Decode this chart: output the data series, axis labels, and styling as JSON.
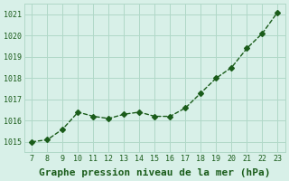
{
  "x": [
    7,
    8,
    9,
    10,
    11,
    12,
    13,
    14,
    15,
    16,
    17,
    18,
    19,
    20,
    21,
    22,
    23
  ],
  "y": [
    1015.0,
    1015.1,
    1015.6,
    1016.4,
    1016.2,
    1016.1,
    1016.3,
    1016.4,
    1016.2,
    1016.2,
    1016.6,
    1017.3,
    1018.0,
    1018.5,
    1019.4,
    1020.1,
    1021.1
  ],
  "line_color": "#1a5c1a",
  "marker_style": "D",
  "marker_size": 3,
  "background_color": "#d8f0e8",
  "grid_color": "#b0d8c8",
  "xlabel": "Graphe pression niveau de la mer (hPa)",
  "xlabel_fontsize": 8,
  "ytick_labels": [
    "1015",
    "1016",
    "1017",
    "1018",
    "1019",
    "1020",
    "1021"
  ],
  "ytick_values": [
    1015,
    1016,
    1017,
    1018,
    1019,
    1020,
    1021
  ],
  "xlim": [
    6.5,
    23.5
  ],
  "ylim": [
    1014.5,
    1021.5
  ],
  "xtick_values": [
    7,
    8,
    9,
    10,
    11,
    12,
    13,
    14,
    15,
    16,
    17,
    18,
    19,
    20,
    21,
    22,
    23
  ],
  "title_color": "#1a5c1a",
  "axis_label_color": "#1a5c1a"
}
